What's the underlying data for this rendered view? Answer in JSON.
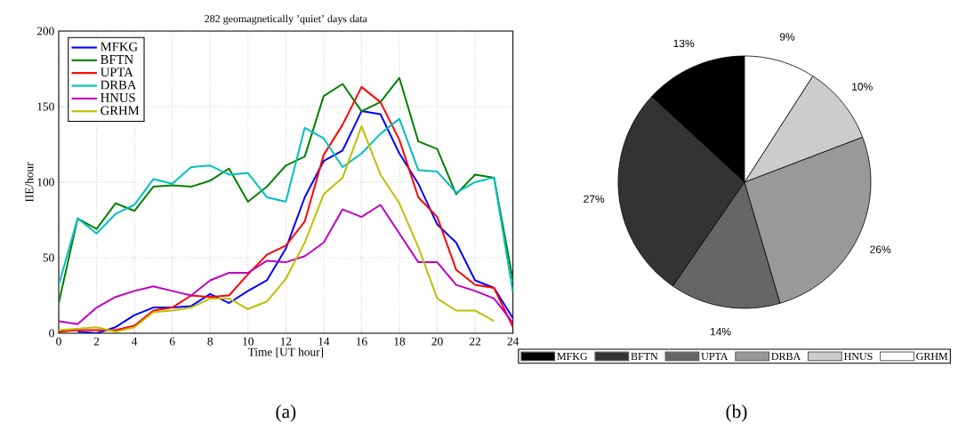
{
  "chart_data": [
    {
      "type": "line",
      "title": "282 geomagnetically ’quiet’ days data",
      "xlabel": "Time [UT hour]",
      "ylabel": "IIE/hour",
      "x": [
        0,
        1,
        2,
        3,
        4,
        5,
        6,
        7,
        8,
        9,
        10,
        11,
        12,
        13,
        14,
        15,
        16,
        17,
        18,
        19,
        20,
        21,
        22,
        23,
        24
      ],
      "series": [
        {
          "name": "MFKG",
          "color": "#0000ff",
          "values": [
            null,
            1,
            0,
            4,
            12,
            17,
            17,
            18,
            26,
            20,
            28,
            35,
            56,
            90,
            114,
            121,
            147,
            145,
            119,
            99,
            72,
            60,
            35,
            30,
            10
          ]
        },
        {
          "name": "BFTN",
          "color": "#008000",
          "values": [
            20,
            76,
            69,
            86,
            81,
            97,
            98,
            97,
            101,
            109,
            87,
            97,
            111,
            117,
            157,
            165,
            147,
            153,
            169,
            127,
            122,
            92,
            105,
            103,
            35
          ]
        },
        {
          "name": "UPTA",
          "color": "#ff0000",
          "values": [
            1,
            2,
            2,
            2,
            5,
            15,
            17,
            25,
            24,
            25,
            39,
            52,
            58,
            74,
            118,
            138,
            163,
            153,
            128,
            90,
            77,
            42,
            32,
            30,
            4
          ]
        },
        {
          "name": "DRBA",
          "color": "#00bfbf",
          "values": [
            32,
            76,
            66,
            79,
            85,
            102,
            99,
            110,
            111,
            105,
            106,
            90,
            87,
            136,
            129,
            110,
            119,
            132,
            142,
            108,
            107,
            93,
            100,
            103,
            27
          ]
        },
        {
          "name": "HNUS",
          "color": "#bf00bf",
          "values": [
            8,
            6,
            17,
            24,
            28,
            31,
            28,
            25,
            35,
            40,
            40,
            48,
            47,
            51,
            60,
            82,
            77,
            85,
            66,
            47,
            47,
            32,
            28,
            23,
            7
          ]
        },
        {
          "name": "GRHM",
          "color": "#bfbf00",
          "values": [
            2,
            3,
            4,
            1,
            4,
            14,
            15,
            17,
            23,
            23,
            16,
            21,
            36,
            60,
            92,
            103,
            137,
            105,
            86,
            57,
            23,
            15,
            15,
            8,
            null
          ]
        }
      ],
      "xlim": [
        0,
        24
      ],
      "ylim": [
        0,
        200
      ],
      "xticks": [
        0,
        2,
        4,
        6,
        8,
        10,
        12,
        14,
        16,
        18,
        20,
        22,
        24
      ],
      "yticks": [
        0,
        50,
        100,
        150,
        200
      ],
      "grid": true,
      "legend": "top left",
      "line_style": "solid",
      "annotations": [
        "(a)"
      ]
    },
    {
      "type": "pie",
      "categories": [
        "MFKG",
        "BFTN",
        "UPTA",
        "DRBA",
        "HNUS",
        "GRHM"
      ],
      "values": [
        13,
        27,
        14,
        26,
        10,
        9
      ],
      "value_labels": [
        "13%",
        "27%",
        "14%",
        "26%",
        "10%",
        "9%"
      ],
      "colors": [
        "#000000",
        "#333333",
        "#666666",
        "#999999",
        "#cccccc",
        "#ffffff"
      ],
      "legend": "bottom",
      "annotations": [
        "(b)"
      ]
    }
  ]
}
